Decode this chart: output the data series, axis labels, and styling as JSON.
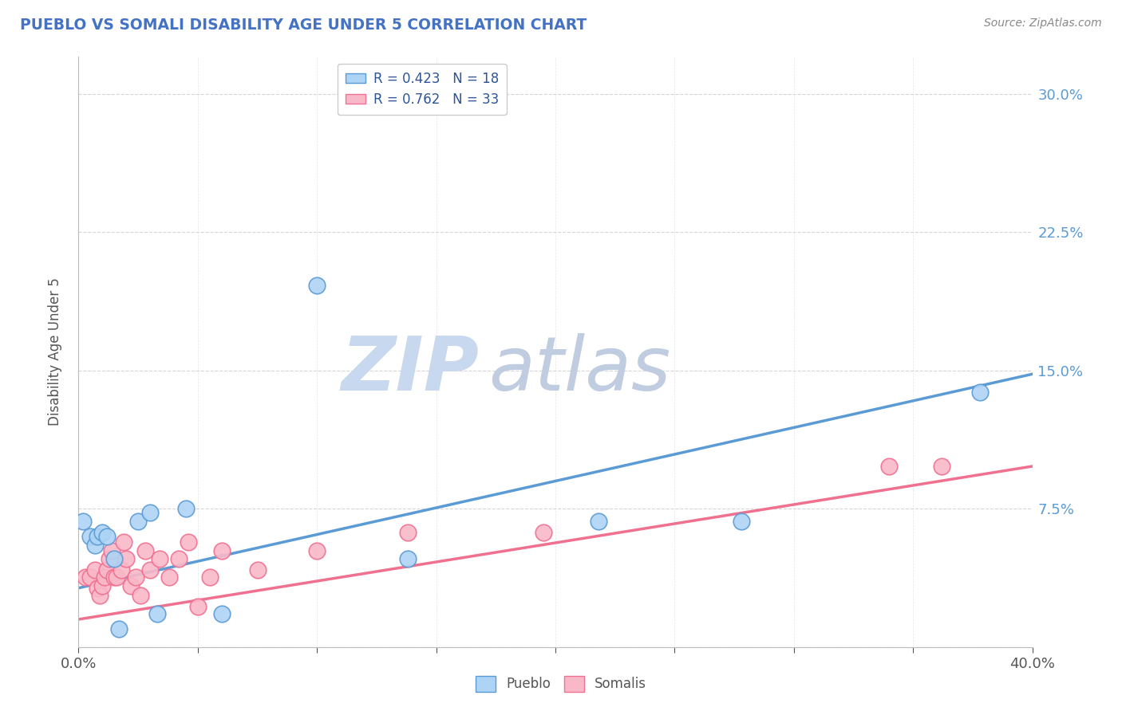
{
  "title": "PUEBLO VS SOMALI DISABILITY AGE UNDER 5 CORRELATION CHART",
  "source": "Source: ZipAtlas.com",
  "ylabel": "Disability Age Under 5",
  "xlim": [
    0.0,
    0.4
  ],
  "ylim": [
    0.0,
    0.32
  ],
  "pueblo_R": 0.423,
  "pueblo_N": 18,
  "somali_R": 0.762,
  "somali_N": 33,
  "pueblo_color": "#aed4f5",
  "somali_color": "#f9b8c8",
  "pueblo_line_color": "#5b9bd5",
  "somali_line_color": "#f07090",
  "title_color": "#4472c4",
  "legend_text_color": "#2f5597",
  "watermark_zip_color": "#c8d8ee",
  "watermark_atlas_color": "#c0cce0",
  "background_color": "#ffffff",
  "pueblo_points": [
    [
      0.002,
      0.068
    ],
    [
      0.005,
      0.06
    ],
    [
      0.007,
      0.055
    ],
    [
      0.008,
      0.06
    ],
    [
      0.01,
      0.062
    ],
    [
      0.012,
      0.06
    ],
    [
      0.015,
      0.048
    ],
    [
      0.017,
      0.01
    ],
    [
      0.025,
      0.068
    ],
    [
      0.03,
      0.073
    ],
    [
      0.033,
      0.018
    ],
    [
      0.045,
      0.075
    ],
    [
      0.06,
      0.018
    ],
    [
      0.1,
      0.196
    ],
    [
      0.138,
      0.048
    ],
    [
      0.218,
      0.068
    ],
    [
      0.278,
      0.068
    ],
    [
      0.378,
      0.138
    ]
  ],
  "somali_points": [
    [
      0.003,
      0.038
    ],
    [
      0.005,
      0.038
    ],
    [
      0.007,
      0.042
    ],
    [
      0.008,
      0.032
    ],
    [
      0.009,
      0.028
    ],
    [
      0.01,
      0.033
    ],
    [
      0.011,
      0.038
    ],
    [
      0.012,
      0.042
    ],
    [
      0.013,
      0.048
    ],
    [
      0.014,
      0.052
    ],
    [
      0.015,
      0.038
    ],
    [
      0.016,
      0.038
    ],
    [
      0.018,
      0.042
    ],
    [
      0.019,
      0.057
    ],
    [
      0.02,
      0.048
    ],
    [
      0.022,
      0.033
    ],
    [
      0.024,
      0.038
    ],
    [
      0.026,
      0.028
    ],
    [
      0.028,
      0.052
    ],
    [
      0.03,
      0.042
    ],
    [
      0.034,
      0.048
    ],
    [
      0.038,
      0.038
    ],
    [
      0.042,
      0.048
    ],
    [
      0.046,
      0.057
    ],
    [
      0.05,
      0.022
    ],
    [
      0.055,
      0.038
    ],
    [
      0.06,
      0.052
    ],
    [
      0.075,
      0.042
    ],
    [
      0.1,
      0.052
    ],
    [
      0.138,
      0.062
    ],
    [
      0.195,
      0.062
    ],
    [
      0.34,
      0.098
    ],
    [
      0.362,
      0.098
    ]
  ],
  "pueblo_trendline_x": [
    0.0,
    0.4
  ],
  "pueblo_trendline_y": [
    0.032,
    0.148
  ],
  "somali_trendline_x": [
    0.0,
    0.4
  ],
  "somali_trendline_y": [
    0.015,
    0.098
  ],
  "xtick_positions": [
    0.0,
    0.05,
    0.1,
    0.15,
    0.2,
    0.25,
    0.3,
    0.35,
    0.4
  ],
  "ytick_positions": [
    0.0,
    0.075,
    0.15,
    0.225,
    0.3
  ],
  "ytick_right_labels": [
    "",
    "7.5%",
    "15.0%",
    "22.5%",
    "30.0%"
  ]
}
